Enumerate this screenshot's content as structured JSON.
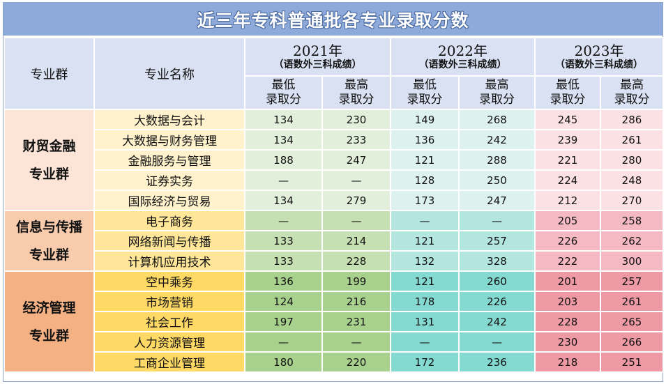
{
  "title": "近三年专科普通批各专业录取分数",
  "headers": {
    "group": "专业群",
    "major": "专业名称",
    "years": [
      {
        "year": "2021年",
        "sub": "（语数外三科成绩）"
      },
      {
        "year": "2022年",
        "sub": "（语数外三科成绩）"
      },
      {
        "year": "2023年",
        "sub": "（语数外三科成绩）"
      }
    ],
    "min_l1": "最低",
    "min_l2": "录取分",
    "max_l1": "最高",
    "max_l2": "录取分"
  },
  "groups": [
    {
      "name_l1": "财贸金融",
      "name_l2": "专业群",
      "rows": [
        {
          "major": "大数据与会计",
          "scores": [
            "134",
            "230",
            "149",
            "268",
            "245",
            "286"
          ]
        },
        {
          "major": "大数据与财务管理",
          "scores": [
            "134",
            "233",
            "136",
            "242",
            "239",
            "261"
          ]
        },
        {
          "major": "金融服务与管理",
          "scores": [
            "188",
            "247",
            "121",
            "288",
            "221",
            "280"
          ]
        },
        {
          "major": "证券实务",
          "scores": [
            "—",
            "—",
            "128",
            "250",
            "224",
            "248"
          ]
        },
        {
          "major": "国际经济与贸易",
          "scores": [
            "134",
            "279",
            "173",
            "247",
            "212",
            "270"
          ]
        }
      ]
    },
    {
      "name_l1": "信息与传播",
      "name_l2": "专业群",
      "rows": [
        {
          "major": "电子商务",
          "scores": [
            "—",
            "—",
            "—",
            "—",
            "205",
            "258"
          ]
        },
        {
          "major": "网络新闻与传播",
          "scores": [
            "133",
            "214",
            "121",
            "257",
            "226",
            "262"
          ]
        },
        {
          "major": "计算机应用技术",
          "scores": [
            "133",
            "228",
            "132",
            "328",
            "222",
            "300"
          ]
        }
      ]
    },
    {
      "name_l1": "经济管理",
      "name_l2": "专业群",
      "rows": [
        {
          "major": "空中乘务",
          "scores": [
            "136",
            "199",
            "121",
            "260",
            "201",
            "257"
          ]
        },
        {
          "major": "市场营销",
          "scores": [
            "124",
            "216",
            "178",
            "226",
            "203",
            "261"
          ]
        },
        {
          "major": "社会工作",
          "scores": [
            "197",
            "231",
            "131",
            "242",
            "228",
            "265"
          ]
        },
        {
          "major": "人力资源管理",
          "scores": [
            "—",
            "—",
            "—",
            "—",
            "230",
            "266"
          ]
        },
        {
          "major": "工商企业管理",
          "scores": [
            "180",
            "220",
            "172",
            "236",
            "218",
            "251"
          ]
        }
      ]
    }
  ]
}
